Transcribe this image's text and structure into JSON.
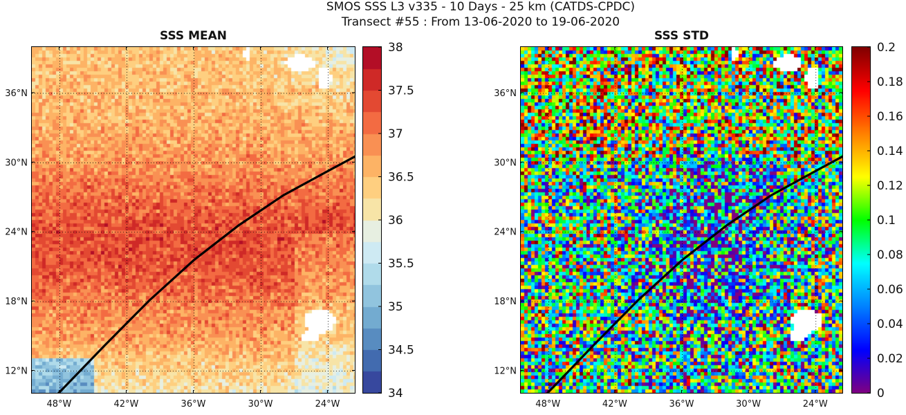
{
  "figure": {
    "title_line1": "SMOS SSS L3 v335 - 10 Days - 25 km (CATDS-CPDC)",
    "title_line2": "Transect #55 : From 13-06-2020 to 19-06-2020"
  },
  "colors": {
    "land_missing": "#ffffff",
    "transect": "#000000",
    "gridline": "#000000"
  },
  "maps": [
    {
      "id": "mean",
      "title": "SSS MEAN",
      "colormap": "RdYlBu_r",
      "lon_ticks": [
        "48°W",
        "42°W",
        "36°W",
        "30°W",
        "24°W"
      ],
      "lat_ticks": [
        "36°N",
        "30°N",
        "24°N",
        "18°N",
        "12°N"
      ],
      "colorbar": {
        "min": 34,
        "max": 38,
        "ticks": [
          "38",
          "37.5",
          "37",
          "36.5",
          "36",
          "35.5",
          "35",
          "34.5",
          "34"
        ]
      }
    },
    {
      "id": "std",
      "title": "SSS STD",
      "colormap": "jet",
      "lon_ticks": [
        "48°W",
        "42°W",
        "36°W",
        "30°W",
        "24°W"
      ],
      "lat_ticks": [
        "36°N",
        "30°N",
        "24°N",
        "18°N",
        "12°N"
      ],
      "colorbar": {
        "min": 0,
        "max": 0.2,
        "ticks": [
          "0.2",
          "0.18",
          "0.16",
          "0.14",
          "0.12",
          "0.1",
          "0.08",
          "0.06",
          "0.04",
          "0.02",
          "0"
        ]
      }
    }
  ],
  "chart_data": {
    "type": "heatmap",
    "lon_range": [
      -50.5,
      -21.5
    ],
    "lat_range": [
      10,
      40
    ],
    "transect": {
      "lon": [
        -48.2,
        -44,
        -40,
        -36,
        -32,
        -28,
        -24,
        -21.5
      ],
      "lat": [
        10,
        14.2,
        18.1,
        21.6,
        24.6,
        27.2,
        29.3,
        30.6
      ]
    }
  }
}
